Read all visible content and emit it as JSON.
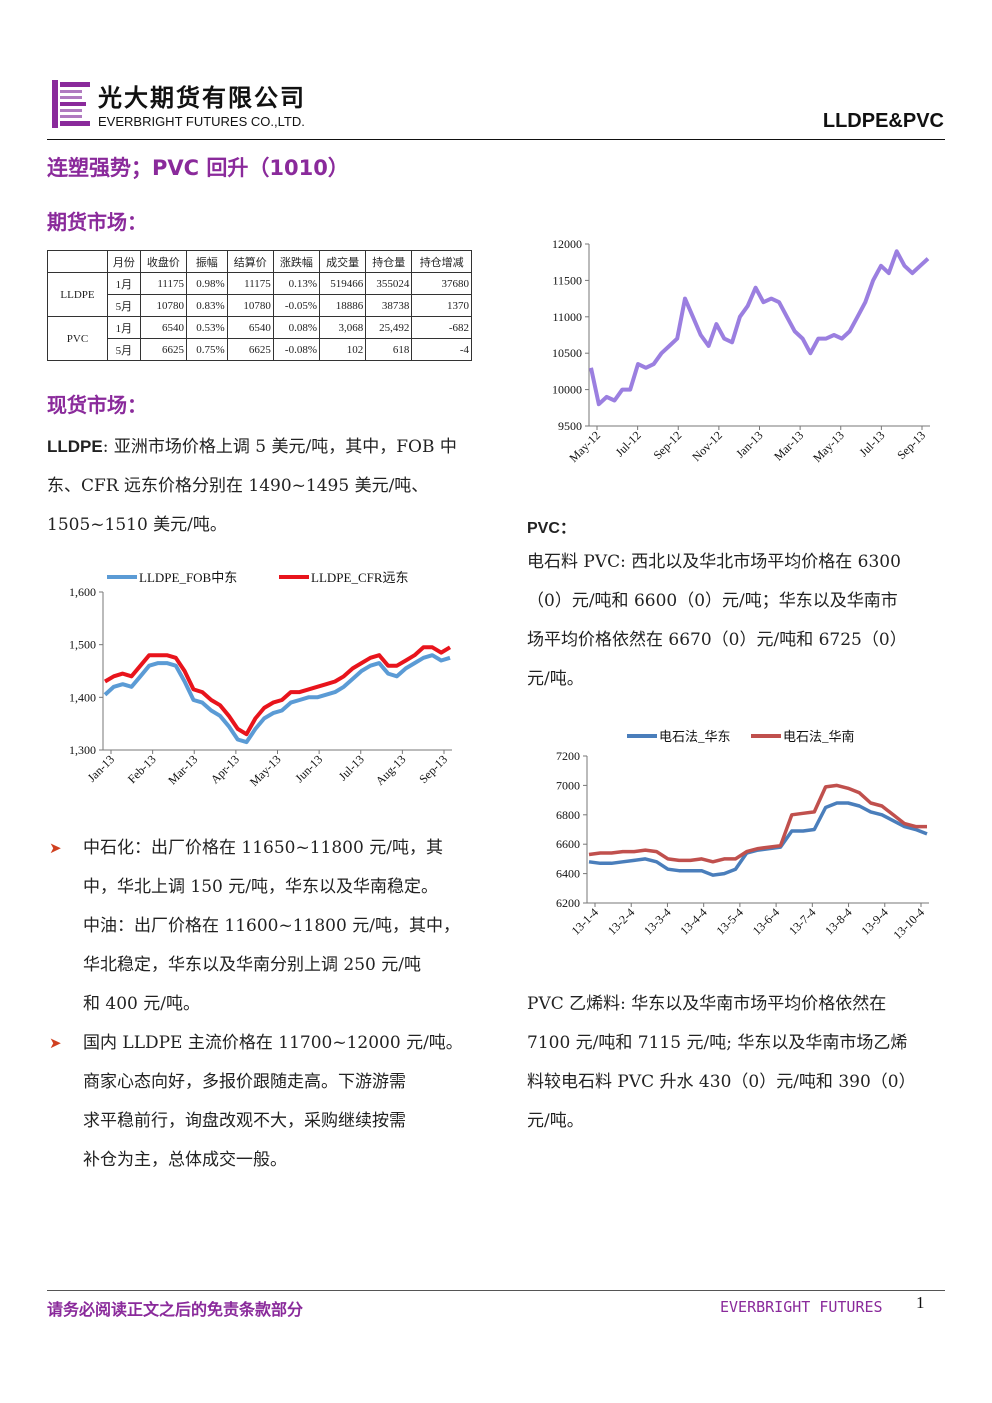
{
  "header": {
    "brand_cn": "光大期货有限公司",
    "brand_en": "EVERBRIGHT FUTURES CO.,LTD.",
    "topic": "LLDPE&PVC"
  },
  "title": "连塑强势；PVC 回升（1010）",
  "futures_heading": "期货市场：",
  "futures_table": {
    "headers": [
      "月份",
      "收盘价",
      "振幅",
      "结算价",
      "涨跌幅",
      "成交量",
      "持仓量",
      "持仓增减"
    ],
    "groups": [
      {
        "name": "LLDPE",
        "rows": [
          [
            "1月",
            "11175",
            "0.98%",
            "11175",
            "0.13%",
            "519466",
            "355024",
            "37680"
          ],
          [
            "5月",
            "10780",
            "0.83%",
            "10780",
            "-0.05%",
            "18886",
            "38738",
            "1370"
          ]
        ]
      },
      {
        "name": "PVC",
        "rows": [
          [
            "1月",
            "6540",
            "0.53%",
            "6540",
            "0.08%",
            "3,068",
            "25,492",
            "-682"
          ],
          [
            "5月",
            "6625",
            "0.75%",
            "6625",
            "-0.08%",
            "102",
            "618",
            "-4"
          ]
        ]
      }
    ]
  },
  "spot_heading": "现货市场：",
  "lldpe_label": "LLDPE",
  "lldpe_text": ": 亚洲市场价格上调 5 美元/吨，其中，FOB 中东、CFR 远东价格分别在 1490~1495 美元/吨、1505~1510 美元/吨。",
  "bullets": [
    {
      "l1": "中石化：出厂价格在 11650~11800 元/吨，其",
      "l2": "中，华北上调 150 元/吨，华东以及华南稳定。",
      "l3": "中油：出厂价格在 11600~11800 元/吨，其中，",
      "l4": "华北稳定，华东以及华南分别上调 250 元/吨",
      "l5": "和 400 元/吨。"
    },
    {
      "l1": "国内 LLDPE 主流价格在 11700~12000 元/吨。",
      "l2": "商家心态向好，多报价跟随走高。下游游需",
      "l3": "求平稳前行，询盘改观不大，采购继续按需",
      "l4": "补仓为主，总体成交一般。"
    }
  ],
  "pvc_label": "PVC：",
  "pvc_para1": {
    "l1": "电石料 PVC: 西北以及华北市场平均价格在 6300",
    "l2": "（0）元/吨和 6600（0）元/吨；华东以及华南市",
    "l3": "场平均价格依然在 6670（0）元/吨和 6725（0）",
    "l4": "元/吨。"
  },
  "pvc_para2": {
    "l1": "PVC 乙烯料: 华东以及华南市场平均价格依然在",
    "l2": "7100 元/吨和 7115 元/吨; 华东以及华南市场乙烯",
    "l3": "料较电石料 PVC 升水 430（0）元/吨和 390（0）",
    "l4": "元/吨。"
  },
  "footer": {
    "disclaimer": "请务必阅读正文之后的免责条款部分",
    "brand": "EVERBRIGHT FUTURES",
    "page": "1"
  },
  "colors": {
    "accent": "#8a2a9b",
    "series_purple": "#9b7fe0",
    "series_blue": "#5b9bd5",
    "series_red": "#e8141c",
    "series_blue2": "#4a7ebb",
    "series_red2": "#c0504d"
  },
  "chart_data": [
    {
      "type": "line",
      "yticks": [
        9500,
        10000,
        10500,
        11000,
        11500,
        12000
      ],
      "ylim": [
        9500,
        12000
      ],
      "xticks": [
        "May-12",
        "Jul-12",
        "Sep-12",
        "Nov-12",
        "Jan-13",
        "Mar-13",
        "May-13",
        "Jul-13",
        "Sep-13"
      ],
      "series": [
        {
          "values": [
            10300,
            9800,
            9900,
            9850,
            10000,
            10000,
            10350,
            10300,
            10350,
            10500,
            10600,
            10700,
            11250,
            11000,
            10750,
            10600,
            10900,
            10700,
            10650,
            11000,
            11150,
            11400,
            11200,
            11250,
            11200,
            11000,
            10800,
            10700,
            10500,
            10700,
            10700,
            10750,
            10700,
            10800,
            11000,
            11200,
            11500,
            11700,
            11600,
            11900,
            11700,
            11600,
            11700,
            11800
          ]
        }
      ]
    },
    {
      "type": "line",
      "yticks": [
        "1,300",
        "1,400",
        "1,500",
        "1,600"
      ],
      "ylim": [
        1300,
        1600
      ],
      "xticks": [
        "Jan-13",
        "Feb-13",
        "Mar-13",
        "Apr-13",
        "May-13",
        "Jun-13",
        "Jul-13",
        "Aug-13",
        "Sep-13"
      ],
      "legend": "top",
      "series": [
        {
          "name": "LLDPE_FOB中东",
          "values": [
            1405,
            1420,
            1425,
            1420,
            1440,
            1460,
            1465,
            1465,
            1460,
            1430,
            1395,
            1390,
            1375,
            1365,
            1345,
            1320,
            1315,
            1340,
            1360,
            1370,
            1375,
            1390,
            1395,
            1400,
            1400,
            1405,
            1410,
            1420,
            1435,
            1450,
            1460,
            1465,
            1445,
            1440,
            1455,
            1465,
            1475,
            1480,
            1470,
            1475
          ]
        },
        {
          "name": "LLDPE_CFR远东",
          "values": [
            1430,
            1440,
            1445,
            1440,
            1460,
            1480,
            1480,
            1480,
            1475,
            1450,
            1415,
            1410,
            1395,
            1385,
            1365,
            1340,
            1330,
            1360,
            1380,
            1390,
            1395,
            1410,
            1410,
            1415,
            1420,
            1425,
            1430,
            1440,
            1455,
            1465,
            1475,
            1480,
            1460,
            1460,
            1470,
            1480,
            1495,
            1495,
            1485,
            1495
          ]
        }
      ]
    },
    {
      "type": "line",
      "yticks": [
        6200,
        6400,
        6600,
        6800,
        7000,
        7200
      ],
      "ylim": [
        6200,
        7200
      ],
      "xticks": [
        "13-1-4",
        "13-2-4",
        "13-3-4",
        "13-4-4",
        "13-5-4",
        "13-6-4",
        "13-7-4",
        "13-8-4",
        "13-9-4",
        "13-10-4"
      ],
      "legend": "top",
      "series": [
        {
          "name": "电石法_华东",
          "values": [
            6480,
            6470,
            6470,
            6480,
            6490,
            6500,
            6480,
            6430,
            6420,
            6420,
            6420,
            6390,
            6400,
            6430,
            6540,
            6560,
            6570,
            6580,
            6690,
            6690,
            6700,
            6850,
            6880,
            6880,
            6860,
            6820,
            6800,
            6760,
            6720,
            6700,
            6670
          ]
        },
        {
          "name": "电石法_华南",
          "values": [
            6530,
            6540,
            6540,
            6550,
            6550,
            6560,
            6550,
            6500,
            6490,
            6490,
            6500,
            6480,
            6500,
            6500,
            6550,
            6570,
            6580,
            6590,
            6800,
            6810,
            6820,
            6990,
            7000,
            6980,
            6950,
            6880,
            6860,
            6800,
            6740,
            6720,
            6720
          ]
        }
      ]
    }
  ]
}
